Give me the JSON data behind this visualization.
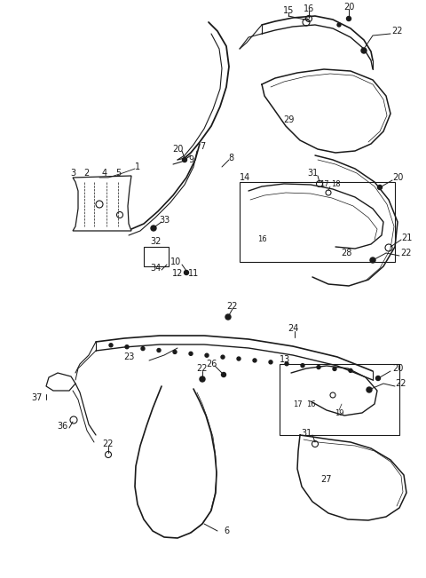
{
  "bg_color": "#ffffff",
  "line_color": "#1a1a1a",
  "figsize": [
    4.8,
    6.51
  ],
  "dpi": 100
}
